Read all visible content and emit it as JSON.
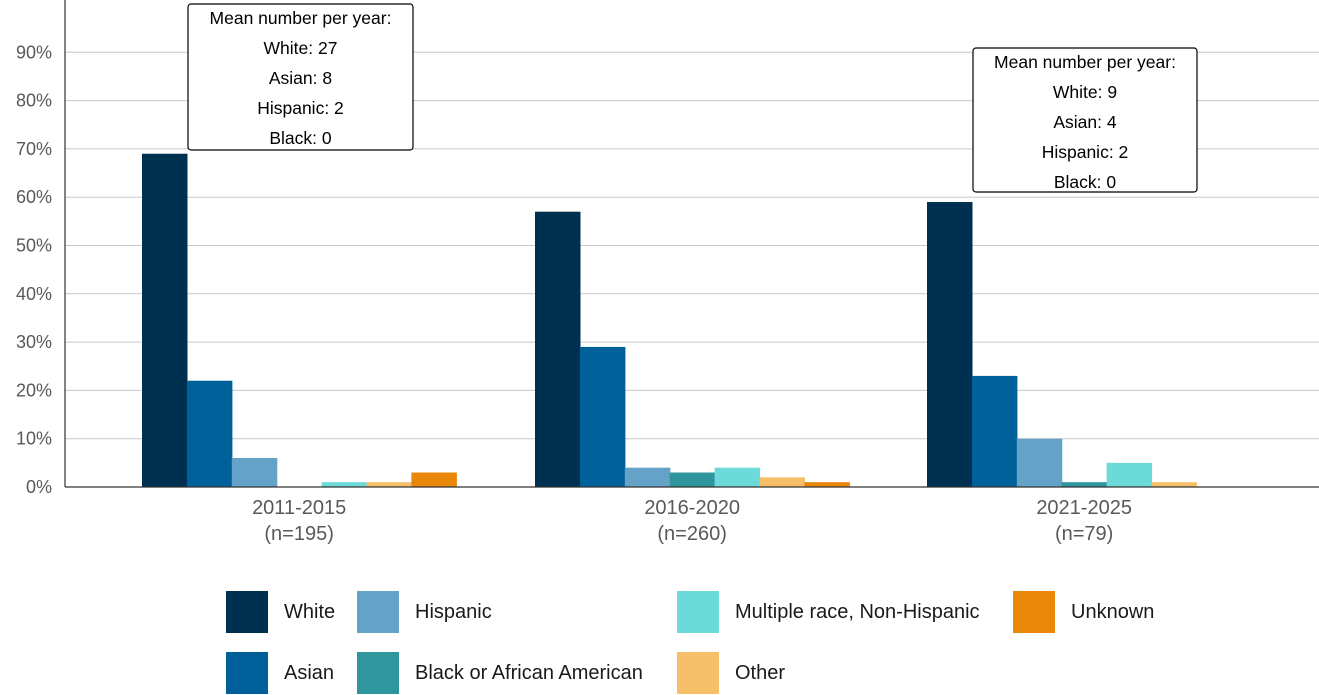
{
  "chart_data": {
    "type": "bar",
    "categories": [
      "2011-2015",
      "2016-2020",
      "2021-2025"
    ],
    "category_sublabels": [
      "(n=195)",
      "(n=260)",
      "(n=79)"
    ],
    "series": [
      {
        "name": "White",
        "color": "#00304f",
        "values": [
          69,
          57,
          59
        ]
      },
      {
        "name": "Asian",
        "color": "#00619a",
        "values": [
          22,
          29,
          23
        ]
      },
      {
        "name": "Hispanic",
        "color": "#65a2c8",
        "values": [
          6,
          4,
          10
        ]
      },
      {
        "name": "Black or African American",
        "color": "#2f969e",
        "values": [
          0,
          3,
          1
        ]
      },
      {
        "name": "Multiple race, Non-Hispanic",
        "color": "#6cdad9",
        "values": [
          1,
          4,
          5
        ]
      },
      {
        "name": "Other",
        "color": "#f6bf6a",
        "values": [
          1,
          2,
          1
        ]
      },
      {
        "name": "Unknown",
        "color": "#e8870a",
        "values": [
          3,
          1,
          0
        ]
      }
    ],
    "ylim": [
      0,
      100
    ],
    "yticks": [
      0,
      10,
      20,
      30,
      40,
      50,
      60,
      70,
      80,
      90
    ],
    "ytick_labels": [
      "0%",
      "10%",
      "20%",
      "30%",
      "40%",
      "50%",
      "60%",
      "70%",
      "80%",
      "90%"
    ],
    "grid": true,
    "legend_position": "bottom",
    "legend_order": [
      "White",
      "Hispanic",
      "Multiple race, Non-Hispanic",
      "Unknown",
      "Asian",
      "Black or African American",
      "Other"
    ],
    "annotations": [
      {
        "category": "2011-2015",
        "lines": [
          "Mean number per year:",
          "White: 27",
          "Asian: 8",
          "Hispanic: 2",
          "Black: 0"
        ]
      },
      {
        "category": "2021-2025",
        "lines": [
          "Mean number per year:",
          "White: 9",
          "Asian: 4",
          "Hispanic: 2",
          "Black: 0"
        ]
      }
    ]
  }
}
